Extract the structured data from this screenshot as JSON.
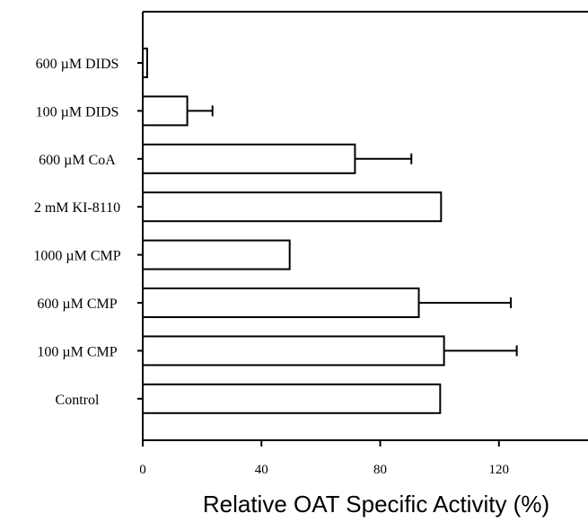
{
  "chart_data": {
    "type": "bar",
    "orientation": "horizontal",
    "categories": [
      "600 µM DIDS",
      "100 µM DIDS",
      "600 µM CoA",
      "2 mM KI-8110",
      "1000 µM CMP",
      "600 µM CMP",
      "100 µM CMP",
      "Control"
    ],
    "values": [
      1.5,
      15,
      71.5,
      100.5,
      49.5,
      93,
      101.5,
      100.2
    ],
    "errors": [
      0,
      8.5,
      19,
      0,
      0,
      31,
      24.5,
      0
    ],
    "xlim": [
      0,
      150
    ],
    "xticks": [
      0,
      40,
      80,
      120
    ],
    "xlabel": "Relative OAT Specific Activity (%)",
    "ylabel": "",
    "title": "",
    "grid": false,
    "legend": "none",
    "bar_fill": "#ffffff",
    "bar_stroke": "#000000"
  }
}
